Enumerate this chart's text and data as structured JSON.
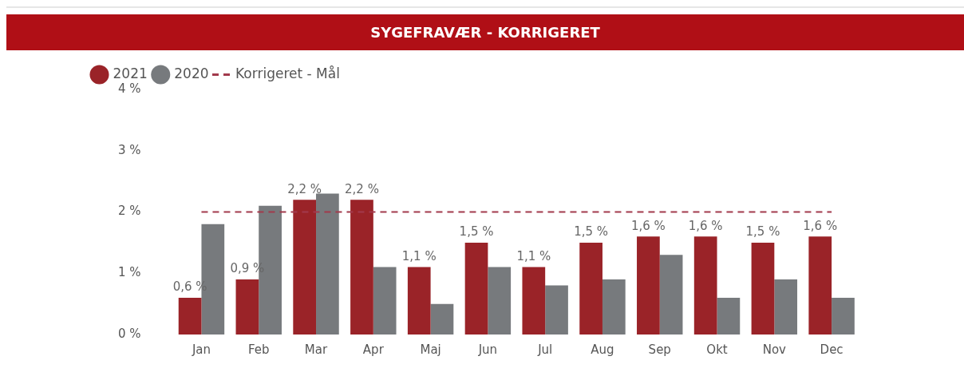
{
  "chart_data": {
    "type": "bar",
    "title": "SYGEFRAVÆR - KORRIGERET",
    "categories": [
      "Jan",
      "Feb",
      "Mar",
      "Apr",
      "Maj",
      "Jun",
      "Jul",
      "Aug",
      "Sep",
      "Okt",
      "Nov",
      "Dec"
    ],
    "series": [
      {
        "name": "2021",
        "color": "#9a2328",
        "values": [
          0.6,
          0.9,
          2.2,
          2.2,
          1.1,
          1.5,
          1.1,
          1.5,
          1.6,
          1.6,
          1.5,
          1.6
        ],
        "value_labels": [
          "0,6 %",
          "0,9 %",
          "2,2 %",
          "2,2 %",
          "1,1 %",
          "1,5 %",
          "1,1 %",
          "1,5 %",
          "1,6 %",
          "1,6 %",
          "1,5 %",
          "1,6 %"
        ]
      },
      {
        "name": "2020",
        "color": "#777a7d",
        "values": [
          1.8,
          2.1,
          2.3,
          1.1,
          0.5,
          1.1,
          0.8,
          0.9,
          1.3,
          0.6,
          0.9,
          0.6
        ]
      },
      {
        "name": "Korrigeret - Mål",
        "type": "line",
        "color": "#a23a4c",
        "line_style": "dashed",
        "marker": "none",
        "values": [
          2,
          2,
          2,
          2,
          2,
          2,
          2,
          2,
          2,
          2,
          2,
          2
        ]
      }
    ],
    "ylim": [
      0,
      4
    ],
    "yticks": [
      {
        "value": 0,
        "label": "0 %"
      },
      {
        "value": 1,
        "label": "1 %"
      },
      {
        "value": 2,
        "label": "2 %"
      },
      {
        "value": 3,
        "label": "3 %"
      },
      {
        "value": 4,
        "label": "4 %"
      }
    ],
    "legend": "top left"
  }
}
